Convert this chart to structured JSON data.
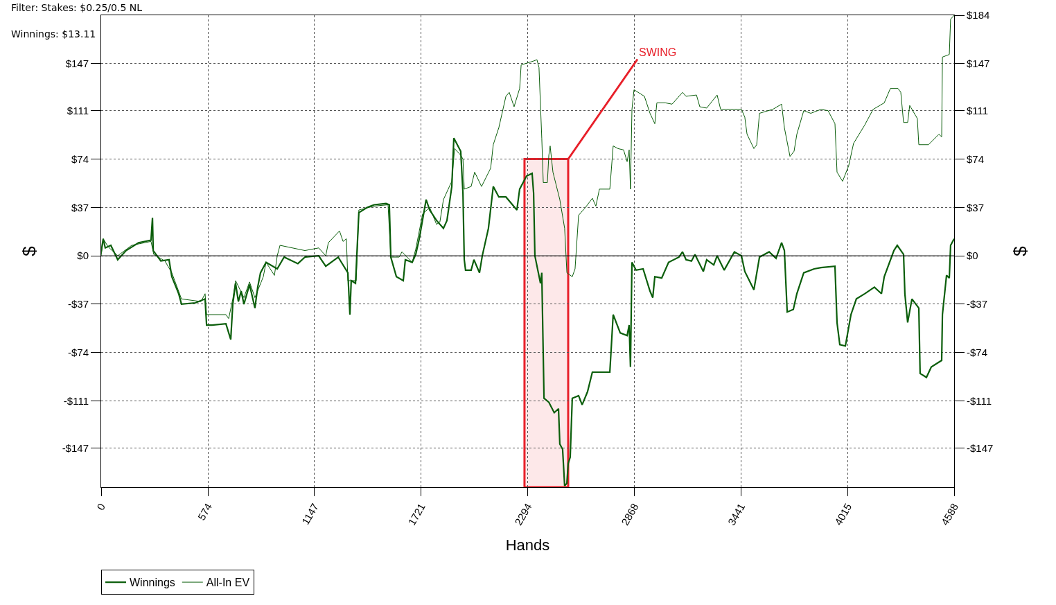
{
  "chart_data": {
    "type": "line",
    "xlabel": "Hands",
    "ylabel": "$",
    "y2label": "$",
    "annotations": [
      "Filter: Stakes: $0.25/0.5 NL",
      "Winnings: $13.11",
      {
        "text": "SWING",
        "x": 2512,
        "y": 74
      }
    ],
    "bands": [
      {
        "axis": "x",
        "from": 2277,
        "to": 2512,
        "color": "#e8202a"
      }
    ],
    "ref_lines": [
      {
        "axis": "y",
        "value": 0,
        "color": "#000000"
      }
    ],
    "series": [
      {
        "name": "Winnings",
        "color": "#0b5e0b",
        "x": [
          0,
          11,
          22,
          52,
          89,
          134,
          201,
          268,
          276,
          280,
          321,
          365,
          380,
          417,
          432,
          507,
          559,
          567,
          596,
          671,
          697,
          708,
          723,
          738,
          753,
          768,
          798,
          827,
          842,
          857,
          887,
          947,
          984,
          1058,
          1096,
          1170,
          1208,
          1275,
          1327,
          1338,
          1345,
          1368,
          1386,
          1431,
          1468,
          1532,
          1550,
          1558,
          1588,
          1625,
          1636,
          1673,
          1692,
          1711,
          1748,
          1767,
          1804,
          1841,
          1860,
          1886,
          1897,
          1934,
          1946,
          1953,
          1960,
          1990,
          2005,
          2035,
          2050,
          2083,
          2109,
          2139,
          2177,
          2236,
          2251,
          2288,
          2318,
          2326,
          2333,
          2363,
          2370,
          2382,
          2408,
          2437,
          2460,
          2467,
          2482,
          2493,
          2505,
          2512,
          2523,
          2534,
          2568,
          2587,
          2616,
          2642,
          2698,
          2736,
          2743,
          2754,
          2792,
          2829,
          2840,
          2847,
          2855,
          2877,
          2915,
          2952,
          2967,
          2978,
          3015,
          3052,
          3108,
          3127,
          3146,
          3175,
          3194,
          3239,
          3257,
          3295,
          3313,
          3351,
          3406,
          3444,
          3462,
          3511,
          3541,
          3593,
          3630,
          3660,
          3675,
          3690,
          3723,
          3742,
          3779,
          3835,
          3872,
          3947,
          3958,
          3973,
          4003,
          4033,
          4062,
          4107,
          4159,
          4197,
          4212,
          4264,
          4282,
          4316,
          4323,
          4338,
          4361,
          4398,
          4405,
          4439,
          4465,
          4521,
          4525,
          4547,
          4562,
          4569,
          4588
        ],
        "values": [
          3,
          13,
          6,
          8,
          -3,
          4,
          10,
          12,
          29,
          4,
          -4,
          -3,
          -16,
          -29,
          -37,
          -36,
          -33,
          -53,
          -53,
          -52,
          -64,
          -37,
          -21,
          -35,
          -27,
          -37,
          -22,
          -40,
          -24,
          -13,
          -5,
          -10,
          -1,
          -6,
          -1,
          0,
          -8,
          -1,
          -13,
          -45,
          -19,
          -21,
          33,
          37,
          39,
          40,
          39,
          -1,
          -16,
          -19,
          -3,
          -5,
          1,
          13,
          43,
          35,
          27,
          21,
          27,
          53,
          90,
          80,
          48,
          -3,
          -11,
          -11,
          -3,
          -13,
          0,
          21,
          53,
          45,
          45,
          35,
          51,
          61,
          63,
          48,
          0,
          -21,
          -13,
          -109,
          -112,
          -120,
          -117,
          -144,
          -148,
          -176,
          -174,
          -159,
          -154,
          -109,
          -107,
          -114,
          -104,
          -89,
          -89,
          -89,
          -72,
          -45,
          -59,
          -61,
          -53,
          -85,
          -5,
          -11,
          -10,
          -27,
          -32,
          -16,
          -17,
          -5,
          -1,
          3,
          -3,
          -4,
          1,
          -12,
          -3,
          -7,
          0,
          -11,
          3,
          0,
          -12,
          -26,
          -1,
          3,
          -2,
          10,
          4,
          -43,
          -41,
          -29,
          -13,
          -10,
          -9,
          -8,
          -51,
          -68,
          -69,
          -45,
          -33,
          -29,
          -24,
          -29,
          -16,
          4,
          8,
          1,
          -29,
          -51,
          -33,
          -40,
          -90,
          -93,
          -85,
          -80,
          -45,
          -15,
          -17,
          8,
          13
        ]
      },
      {
        "name": "All-In EV",
        "color": "#0b5e0b",
        "x": [
          0,
          11,
          37,
          89,
          164,
          268,
          283,
          343,
          380,
          432,
          537,
          559,
          567,
          671,
          686,
          708,
          723,
          768,
          798,
          827,
          872,
          887,
          932,
          947,
          962,
          1096,
          1170,
          1208,
          1222,
          1282,
          1301,
          1319,
          1327,
          1372,
          1386,
          1468,
          1543,
          1558,
          1603,
          1618,
          1673,
          1692,
          1729,
          1767,
          1804,
          1822,
          1841,
          1886,
          1901,
          1934,
          1946,
          1953,
          1990,
          2009,
          2046,
          2095,
          2109,
          2139,
          2177,
          2195,
          2221,
          2251,
          2259,
          2326,
          2344,
          2355,
          2370,
          2378,
          2400,
          2408,
          2415,
          2430,
          2467,
          2493,
          2505,
          2534,
          2549,
          2568,
          2605,
          2642,
          2661,
          2680,
          2736,
          2754,
          2780,
          2810,
          2829,
          2840,
          2847,
          2855,
          2866,
          2922,
          2952,
          2978,
          2989,
          3034,
          3071,
          3127,
          3146,
          3202,
          3220,
          3257,
          3313,
          3332,
          3444,
          3462,
          3474,
          3511,
          3526,
          3541,
          3612,
          3660,
          3675,
          3705,
          3727,
          3742,
          3779,
          3817,
          3872,
          3910,
          3947,
          3958,
          3988,
          4021,
          4047,
          4107,
          4152,
          4212,
          4245,
          4286,
          4301,
          4316,
          4338,
          4349,
          4390,
          4398,
          4450,
          4506,
          4521,
          4525,
          4562,
          4569,
          4588
        ],
        "values": [
          0,
          13,
          7,
          0,
          8,
          11,
          1,
          -4,
          -13,
          -33,
          -35,
          -29,
          -45,
          -45,
          -48,
          -33,
          -19,
          -32,
          -20,
          -32,
          -16,
          -5,
          -15,
          0,
          8,
          4,
          6,
          0,
          10,
          19,
          11,
          13,
          -19,
          -19,
          35,
          38,
          39,
          -1,
          -1,
          3,
          -5,
          5,
          32,
          37,
          24,
          26,
          43,
          57,
          82,
          77,
          74,
          51,
          53,
          64,
          53,
          67,
          85,
          98,
          122,
          125,
          114,
          128,
          146,
          149,
          150,
          144,
          90,
          56,
          56,
          77,
          84,
          64,
          43,
          21,
          -13,
          -16,
          -10,
          31,
          37,
          44,
          38,
          51,
          51,
          84,
          82,
          81,
          72,
          81,
          51,
          112,
          127,
          122,
          109,
          101,
          117,
          117,
          116,
          125,
          122,
          123,
          114,
          113,
          123,
          112,
          112,
          106,
          93,
          82,
          85,
          109,
          112,
          116,
          98,
          76,
          80,
          93,
          111,
          109,
          112,
          111,
          101,
          64,
          57,
          69,
          86,
          100,
          112,
          117,
          128,
          128,
          125,
          102,
          102,
          115,
          105,
          85,
          85,
          93,
          91,
          152,
          154,
          181,
          184
        ]
      }
    ],
    "xlim": [
      0,
      4588
    ],
    "xticks": [
      0,
      574,
      1147,
      1721,
      2294,
      2868,
      3441,
      4015,
      4588
    ],
    "ylim": [
      -177,
      184
    ],
    "yticks": [
      {
        "value": -147,
        "label": "-$147"
      },
      {
        "value": -111,
        "label": "-$111"
      },
      {
        "value": -74,
        "label": "-$74"
      },
      {
        "value": -37,
        "label": "-$37"
      },
      {
        "value": 0,
        "label": "$0"
      },
      {
        "value": 37,
        "label": "$37"
      },
      {
        "value": 74,
        "label": "$74"
      },
      {
        "value": 111,
        "label": "$111"
      },
      {
        "value": 147,
        "label": "$147"
      }
    ],
    "y2lim": [
      -177,
      184
    ],
    "y2ticks": [
      {
        "value": -147,
        "label": "-$147"
      },
      {
        "value": -111,
        "label": "-$111"
      },
      {
        "value": -74,
        "label": "-$74"
      },
      {
        "value": -37,
        "label": "-$37"
      },
      {
        "value": 0,
        "label": "$0"
      },
      {
        "value": 37,
        "label": "$37"
      },
      {
        "value": 74,
        "label": "$74"
      },
      {
        "value": 111,
        "label": "$111"
      },
      {
        "value": 147,
        "label": "$147"
      },
      {
        "value": 184,
        "label": "$184"
      }
    ],
    "grid": true,
    "legend": "bottom left",
    "line_style": "solid",
    "marker": "none"
  }
}
